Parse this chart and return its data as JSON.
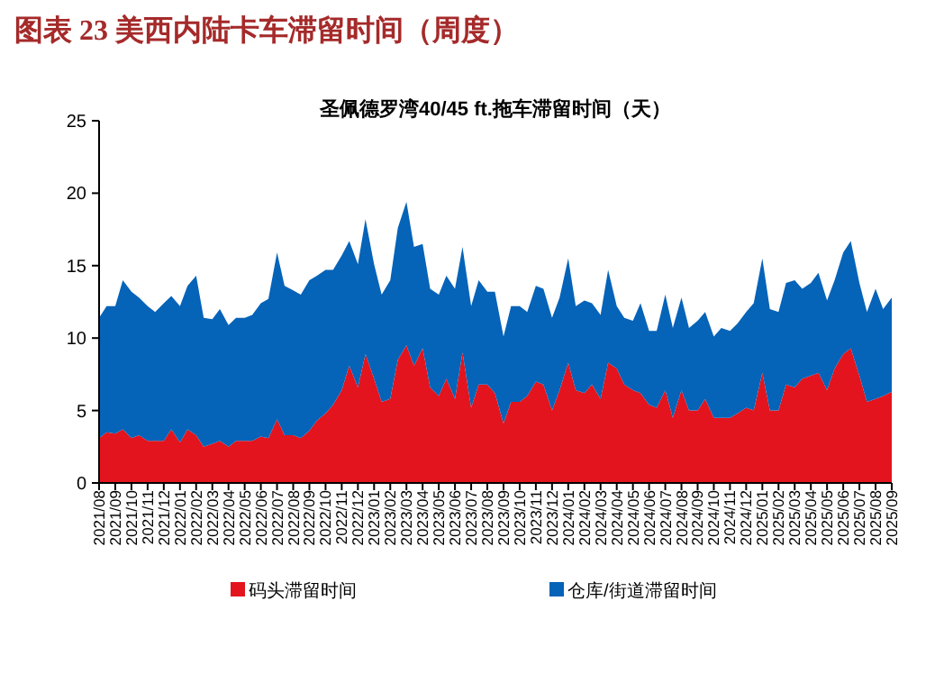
{
  "chart_data": {
    "type": "area",
    "title": "图表 23  美西内陆卡车滞留时间（周度）",
    "subtitle": "圣佩德罗湾40/45 ft.拖车滞留时间（天）",
    "stacked": true,
    "legend": "bottom",
    "x": [
      "2021-08-01",
      "2021-08-15",
      "2021-09-01",
      "2021-09-15",
      "2021-10-01",
      "2021-10-15",
      "2021-11-01",
      "2021-11-15",
      "2021-12-01",
      "2021-12-15",
      "2022-01-01",
      "2022-01-15",
      "2022-02-01",
      "2022-02-15",
      "2022-03-01",
      "2022-03-15",
      "2022-04-01",
      "2022-04-15",
      "2022-05-01",
      "2022-05-15",
      "2022-06-01",
      "2022-06-15",
      "2022-07-01",
      "2022-07-15",
      "2022-08-01",
      "2022-08-15",
      "2022-09-01",
      "2022-09-15",
      "2022-10-01",
      "2022-10-15",
      "2022-11-01",
      "2022-11-15",
      "2022-12-01",
      "2022-12-15",
      "2023-01-01",
      "2023-01-15",
      "2023-02-01",
      "2023-02-15",
      "2023-03-01",
      "2023-03-15",
      "2023-04-01",
      "2023-04-15",
      "2023-05-01",
      "2023-05-15",
      "2023-06-01",
      "2023-06-15",
      "2023-07-01",
      "2023-07-15",
      "2023-08-01",
      "2023-08-15",
      "2023-09-01",
      "2023-09-15",
      "2023-10-01",
      "2023-10-15",
      "2023-11-01",
      "2023-11-15",
      "2023-12-01",
      "2023-12-15",
      "2024-01-01",
      "2024-01-15",
      "2024-02-01",
      "2024-02-15",
      "2024-03-01",
      "2024-03-15",
      "2024-04-01",
      "2024-04-15",
      "2024-05-01",
      "2024-05-15",
      "2024-06-01",
      "2024-06-15",
      "2024-07-01",
      "2024-07-15",
      "2024-08-01",
      "2024-08-15",
      "2024-09-01",
      "2024-09-15",
      "2024-10-01",
      "2024-10-15",
      "2024-11-01",
      "2024-11-15",
      "2024-12-01",
      "2024-12-15",
      "2025-01-01",
      "2025-01-15",
      "2025-02-01",
      "2025-02-15",
      "2025-03-01",
      "2025-03-15",
      "2025-04-01",
      "2025-04-15",
      "2025-05-01",
      "2025-05-15",
      "2025-06-01",
      "2025-06-15",
      "2025-07-01",
      "2025-07-15",
      "2025-08-01",
      "2025-08-15",
      "2025-09-01"
    ],
    "series": [
      {
        "name": "码头滞留时间",
        "color": "#e3141d",
        "values": [
          3.1,
          3.5,
          3.4,
          3.7,
          3.1,
          3.3,
          2.9,
          2.9,
          2.9,
          3.7,
          2.8,
          3.7,
          3.3,
          2.5,
          2.7,
          2.9,
          2.5,
          2.9,
          2.9,
          2.9,
          3.2,
          3.1,
          4.4,
          3.3,
          3.3,
          3.1,
          3.6,
          4.3,
          4.8,
          5.4,
          6.4,
          8.1,
          6.6,
          8.9,
          7.2,
          5.6,
          5.8,
          8.5,
          9.5,
          8.1,
          9.3,
          6.6,
          6.0,
          7.2,
          5.8,
          9.0,
          5.2,
          6.8,
          6.8,
          6.2,
          4.1,
          5.6,
          5.6,
          6.0,
          7.0,
          6.8,
          5.0,
          6.4,
          8.3,
          6.4,
          6.2,
          6.8,
          5.8,
          8.3,
          7.9,
          6.8,
          6.4,
          6.2,
          5.4,
          5.2,
          6.4,
          4.5,
          6.4,
          5.0,
          5.0,
          5.8,
          4.5,
          4.5,
          4.5,
          4.8,
          5.2,
          5.0,
          7.6,
          5.0,
          5.0,
          6.8,
          6.6,
          7.2,
          7.4,
          7.6,
          6.4,
          7.9,
          8.9,
          9.3,
          7.4,
          5.6,
          5.8,
          6.0,
          6.3
        ]
      },
      {
        "name": "仓库/街道滞留时间",
        "color": "#0563b8",
        "values": [
          8.3,
          8.7,
          8.8,
          10.3,
          10.1,
          9.5,
          9.3,
          8.9,
          9.5,
          9.2,
          9.4,
          9.9,
          11.0,
          8.9,
          8.6,
          9.1,
          8.4,
          8.5,
          8.5,
          8.7,
          9.2,
          9.6,
          11.5,
          10.3,
          10.0,
          9.9,
          10.4,
          10.0,
          9.9,
          9.3,
          9.3,
          8.6,
          8.5,
          9.3,
          7.9,
          7.4,
          8.2,
          9.1,
          9.9,
          8.2,
          7.2,
          6.8,
          7.0,
          7.1,
          7.6,
          7.3,
          7.0,
          7.2,
          6.4,
          7.0,
          6.0,
          6.6,
          6.6,
          5.8,
          6.6,
          6.6,
          6.4,
          6.4,
          7.2,
          5.8,
          6.4,
          5.6,
          5.8,
          6.4,
          4.3,
          4.6,
          4.8,
          6.2,
          5.1,
          5.3,
          6.6,
          6.2,
          6.4,
          5.7,
          6.2,
          6.0,
          5.6,
          6.2,
          6.0,
          6.2,
          6.6,
          7.4,
          7.9,
          7.0,
          6.8,
          7.0,
          7.4,
          6.2,
          6.4,
          6.9,
          6.2,
          6.1,
          7.0,
          7.4,
          6.4,
          6.2,
          7.6,
          6.0,
          6.5
        ]
      }
    ],
    "xlim": [
      "2021-08",
      "2025-09"
    ],
    "xticks": [
      {
        "value": "2021-08",
        "label": "2021/08"
      },
      {
        "value": "2021-09",
        "label": "2021/09"
      },
      {
        "value": "2021-10",
        "label": "2021/10"
      },
      {
        "value": "2021-11",
        "label": "2021/11"
      },
      {
        "value": "2021-12",
        "label": "2021/12"
      },
      {
        "value": "2022-01",
        "label": "2022/01"
      },
      {
        "value": "2022-02",
        "label": "2022/02"
      },
      {
        "value": "2022-03",
        "label": "2022/03"
      },
      {
        "value": "2022-04",
        "label": "2022/04"
      },
      {
        "value": "2022-05",
        "label": "2022/05"
      },
      {
        "value": "2022-06",
        "label": "2022/06"
      },
      {
        "value": "2022-07",
        "label": "2022/07"
      },
      {
        "value": "2022-08",
        "label": "2022/08"
      },
      {
        "value": "2022-09",
        "label": "2022/09"
      },
      {
        "value": "2022-10",
        "label": "2022/10"
      },
      {
        "value": "2022-11",
        "label": "2022/11"
      },
      {
        "value": "2022-12",
        "label": "2022/12"
      },
      {
        "value": "2023-01",
        "label": "2023/01"
      },
      {
        "value": "2023-02",
        "label": "2023/02"
      },
      {
        "value": "2023-03",
        "label": "2023/03"
      },
      {
        "value": "2023-04",
        "label": "2023/04"
      },
      {
        "value": "2023-05",
        "label": "2023/05"
      },
      {
        "value": "2023-06",
        "label": "2023/06"
      },
      {
        "value": "2023-07",
        "label": "2023/07"
      },
      {
        "value": "2023-08",
        "label": "2023/08"
      },
      {
        "value": "2023-09",
        "label": "2023/09"
      },
      {
        "value": "2023-10",
        "label": "2023/10"
      },
      {
        "value": "2023-11",
        "label": "2023/11"
      },
      {
        "value": "2023-12",
        "label": "2023/12"
      },
      {
        "value": "2024-01",
        "label": "2024/01"
      },
      {
        "value": "2024-02",
        "label": "2024/02"
      },
      {
        "value": "2024-03",
        "label": "2024/03"
      },
      {
        "value": "2024-04",
        "label": "2024/04"
      },
      {
        "value": "2024-05",
        "label": "2024/05"
      },
      {
        "value": "2024-06",
        "label": "2024/06"
      },
      {
        "value": "2024-07",
        "label": "2024/07"
      },
      {
        "value": "2024-08",
        "label": "2024/08"
      },
      {
        "value": "2024-09",
        "label": "2024/09"
      },
      {
        "value": "2024-10",
        "label": "2024/10"
      },
      {
        "value": "2024-11",
        "label": "2024/11"
      },
      {
        "value": "2024-12",
        "label": "2024/12"
      },
      {
        "value": "2025-01",
        "label": "2025/01"
      },
      {
        "value": "2025-02",
        "label": "2025/02"
      },
      {
        "value": "2025-03",
        "label": "2025/03"
      },
      {
        "value": "2025-04",
        "label": "2025/04"
      },
      {
        "value": "2025-05",
        "label": "2025/05"
      },
      {
        "value": "2025-06",
        "label": "2025/06"
      },
      {
        "value": "2025-07",
        "label": "2025/07"
      },
      {
        "value": "2025-08",
        "label": "2025/08"
      },
      {
        "value": "2025-09",
        "label": "2025/09"
      }
    ],
    "ylim": [
      0,
      25
    ],
    "yticks": [
      0,
      5,
      10,
      15,
      20,
      25
    ]
  }
}
